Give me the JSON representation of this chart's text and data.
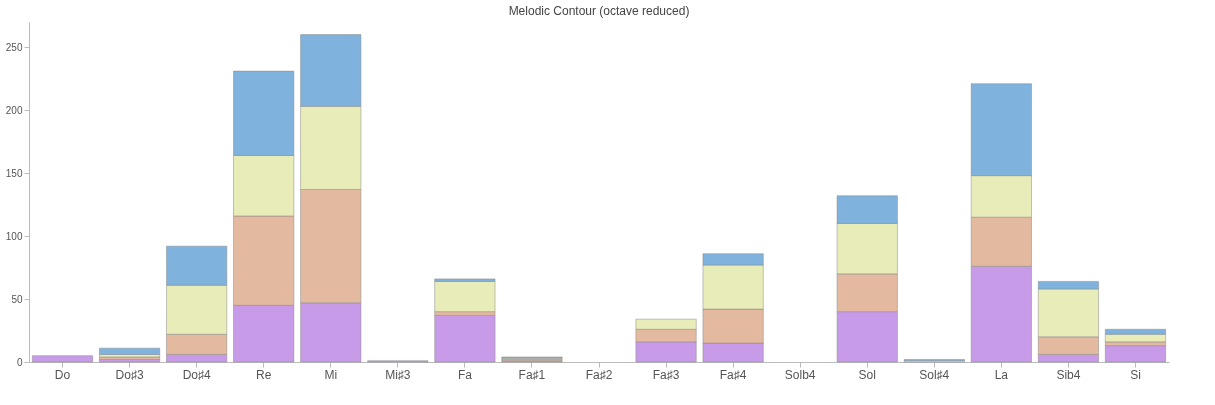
{
  "chart_data": {
    "type": "bar",
    "title": "Melodic Contour (octave reduced)",
    "stacked": true,
    "categories": [
      "Do",
      "Do♯3",
      "Do♯4",
      "Re",
      "Mi",
      "Mi♯3",
      "Fa",
      "Fa♯1",
      "Fa♯2",
      "Fa♯3",
      "Fa♯4",
      "Solb4",
      "Sol",
      "Sol♯4",
      "La",
      "Sib4",
      "Si"
    ],
    "series": [
      {
        "color": "#c89be8",
        "values": [
          5,
          2,
          6,
          45,
          47,
          1,
          37,
          1,
          0,
          16,
          15,
          0,
          40,
          0,
          76,
          6,
          13
        ]
      },
      {
        "color": "#e3b9a0",
        "values": [
          0,
          2,
          16,
          71,
          90,
          0,
          3,
          1,
          0,
          10,
          27,
          0,
          30,
          0,
          39,
          14,
          3
        ]
      },
      {
        "color": "#e8ecb8",
        "values": [
          0,
          2,
          39,
          48,
          66,
          0,
          24,
          1,
          0,
          8,
          35,
          0,
          40,
          1,
          33,
          38,
          6
        ]
      },
      {
        "color": "#7fb2dd",
        "values": [
          0,
          5,
          31,
          67,
          57,
          0,
          2,
          1,
          0,
          0,
          9,
          0,
          22,
          1,
          73,
          6,
          4
        ]
      }
    ],
    "ylim": [
      0,
      270
    ],
    "yticks": [
      0,
      50,
      100,
      150,
      200,
      250
    ],
    "grid": false,
    "legend": false
  }
}
